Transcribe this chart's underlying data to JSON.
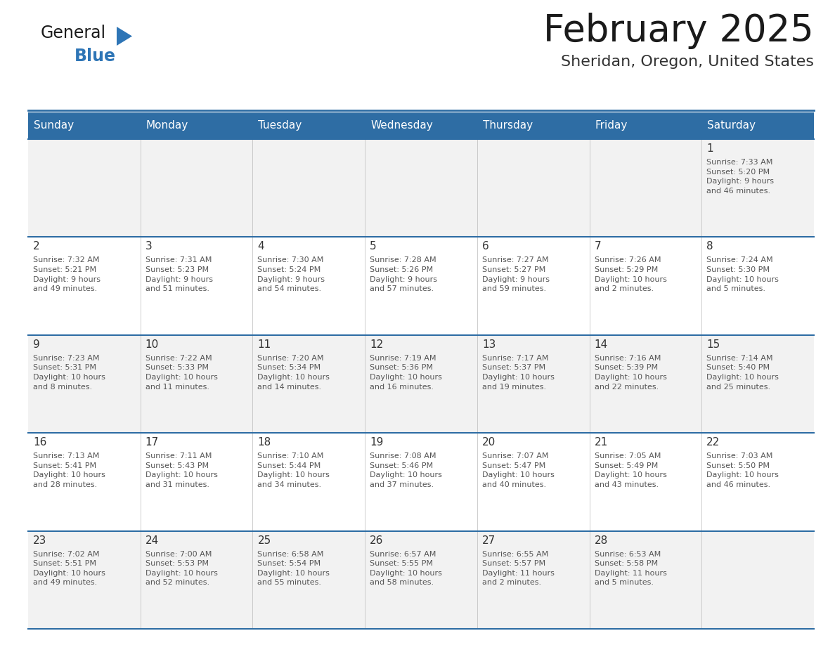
{
  "title": "February 2025",
  "subtitle": "Sheridan, Oregon, United States",
  "header_bg": "#2E6DA4",
  "header_text_color": "#FFFFFF",
  "border_color": "#2E6DA4",
  "row_bg_light": "#F2F2F2",
  "row_bg_white": "#FFFFFF",
  "text_color_dark": "#333333",
  "text_color_body": "#555555",
  "day_headers": [
    "Sunday",
    "Monday",
    "Tuesday",
    "Wednesday",
    "Thursday",
    "Friday",
    "Saturday"
  ],
  "calendar_data": [
    [
      {
        "day": "",
        "text": ""
      },
      {
        "day": "",
        "text": ""
      },
      {
        "day": "",
        "text": ""
      },
      {
        "day": "",
        "text": ""
      },
      {
        "day": "",
        "text": ""
      },
      {
        "day": "",
        "text": ""
      },
      {
        "day": "1",
        "text": "Sunrise: 7:33 AM\nSunset: 5:20 PM\nDaylight: 9 hours\nand 46 minutes."
      }
    ],
    [
      {
        "day": "2",
        "text": "Sunrise: 7:32 AM\nSunset: 5:21 PM\nDaylight: 9 hours\nand 49 minutes."
      },
      {
        "day": "3",
        "text": "Sunrise: 7:31 AM\nSunset: 5:23 PM\nDaylight: 9 hours\nand 51 minutes."
      },
      {
        "day": "4",
        "text": "Sunrise: 7:30 AM\nSunset: 5:24 PM\nDaylight: 9 hours\nand 54 minutes."
      },
      {
        "day": "5",
        "text": "Sunrise: 7:28 AM\nSunset: 5:26 PM\nDaylight: 9 hours\nand 57 minutes."
      },
      {
        "day": "6",
        "text": "Sunrise: 7:27 AM\nSunset: 5:27 PM\nDaylight: 9 hours\nand 59 minutes."
      },
      {
        "day": "7",
        "text": "Sunrise: 7:26 AM\nSunset: 5:29 PM\nDaylight: 10 hours\nand 2 minutes."
      },
      {
        "day": "8",
        "text": "Sunrise: 7:24 AM\nSunset: 5:30 PM\nDaylight: 10 hours\nand 5 minutes."
      }
    ],
    [
      {
        "day": "9",
        "text": "Sunrise: 7:23 AM\nSunset: 5:31 PM\nDaylight: 10 hours\nand 8 minutes."
      },
      {
        "day": "10",
        "text": "Sunrise: 7:22 AM\nSunset: 5:33 PM\nDaylight: 10 hours\nand 11 minutes."
      },
      {
        "day": "11",
        "text": "Sunrise: 7:20 AM\nSunset: 5:34 PM\nDaylight: 10 hours\nand 14 minutes."
      },
      {
        "day": "12",
        "text": "Sunrise: 7:19 AM\nSunset: 5:36 PM\nDaylight: 10 hours\nand 16 minutes."
      },
      {
        "day": "13",
        "text": "Sunrise: 7:17 AM\nSunset: 5:37 PM\nDaylight: 10 hours\nand 19 minutes."
      },
      {
        "day": "14",
        "text": "Sunrise: 7:16 AM\nSunset: 5:39 PM\nDaylight: 10 hours\nand 22 minutes."
      },
      {
        "day": "15",
        "text": "Sunrise: 7:14 AM\nSunset: 5:40 PM\nDaylight: 10 hours\nand 25 minutes."
      }
    ],
    [
      {
        "day": "16",
        "text": "Sunrise: 7:13 AM\nSunset: 5:41 PM\nDaylight: 10 hours\nand 28 minutes."
      },
      {
        "day": "17",
        "text": "Sunrise: 7:11 AM\nSunset: 5:43 PM\nDaylight: 10 hours\nand 31 minutes."
      },
      {
        "day": "18",
        "text": "Sunrise: 7:10 AM\nSunset: 5:44 PM\nDaylight: 10 hours\nand 34 minutes."
      },
      {
        "day": "19",
        "text": "Sunrise: 7:08 AM\nSunset: 5:46 PM\nDaylight: 10 hours\nand 37 minutes."
      },
      {
        "day": "20",
        "text": "Sunrise: 7:07 AM\nSunset: 5:47 PM\nDaylight: 10 hours\nand 40 minutes."
      },
      {
        "day": "21",
        "text": "Sunrise: 7:05 AM\nSunset: 5:49 PM\nDaylight: 10 hours\nand 43 minutes."
      },
      {
        "day": "22",
        "text": "Sunrise: 7:03 AM\nSunset: 5:50 PM\nDaylight: 10 hours\nand 46 minutes."
      }
    ],
    [
      {
        "day": "23",
        "text": "Sunrise: 7:02 AM\nSunset: 5:51 PM\nDaylight: 10 hours\nand 49 minutes."
      },
      {
        "day": "24",
        "text": "Sunrise: 7:00 AM\nSunset: 5:53 PM\nDaylight: 10 hours\nand 52 minutes."
      },
      {
        "day": "25",
        "text": "Sunrise: 6:58 AM\nSunset: 5:54 PM\nDaylight: 10 hours\nand 55 minutes."
      },
      {
        "day": "26",
        "text": "Sunrise: 6:57 AM\nSunset: 5:55 PM\nDaylight: 10 hours\nand 58 minutes."
      },
      {
        "day": "27",
        "text": "Sunrise: 6:55 AM\nSunset: 5:57 PM\nDaylight: 11 hours\nand 2 minutes."
      },
      {
        "day": "28",
        "text": "Sunrise: 6:53 AM\nSunset: 5:58 PM\nDaylight: 11 hours\nand 5 minutes."
      },
      {
        "day": "",
        "text": ""
      }
    ]
  ],
  "logo_color_general": "#1A1A1A",
  "logo_color_blue": "#2E75B6",
  "logo_triangle_color": "#2E75B6",
  "title_color": "#1A1A1A",
  "subtitle_color": "#333333"
}
